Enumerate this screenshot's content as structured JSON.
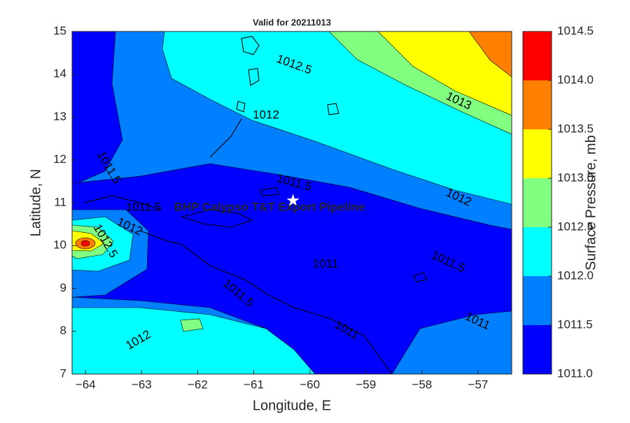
{
  "chart_data": {
    "type": "contourf",
    "title": "Valid for 20211013",
    "x_label": "Longitude, E",
    "y_label": "Latitude, N",
    "colorbar_label": "Surface Pressure, mb",
    "xlim": [
      -64.24,
      -56.4
    ],
    "ylim": [
      7,
      15
    ],
    "xticks": [
      {
        "value": -64,
        "label": "−64"
      },
      {
        "value": -63,
        "label": "−63"
      },
      {
        "value": -62,
        "label": "−62"
      },
      {
        "value": -61,
        "label": "−61"
      },
      {
        "value": -60,
        "label": "−60"
      },
      {
        "value": -59,
        "label": "−59"
      },
      {
        "value": -58,
        "label": "−58"
      },
      {
        "value": -57,
        "label": "−57"
      }
    ],
    "yticks": [
      7,
      8,
      9,
      10,
      11,
      12,
      13,
      14,
      15
    ],
    "levels": [
      1011,
      1011.5,
      1012,
      1012.5,
      1013,
      1013.5,
      1014,
      1014.5
    ],
    "colors": [
      "#0000ff",
      "#0080ff",
      "#00ffff",
      "#80ff80",
      "#ffff00",
      "#ff8000",
      "#ff0000"
    ],
    "clim": [
      1011,
      1014.5
    ],
    "cticks": [
      {
        "value": 1011,
        "label": "1011.0"
      },
      1011.5,
      {
        "value": 1012,
        "label": "1012.0"
      },
      1012.5,
      {
        "value": 1013,
        "label": "1013.0"
      },
      1013.5,
      {
        "value": 1014,
        "label": "1014.0"
      },
      1014.5
    ],
    "contour_labels": [
      1012.5,
      1013,
      1012,
      1011.5,
      1011.5,
      1012,
      1011.5,
      1012,
      1012.5,
      1011,
      1011.5,
      1011.5,
      1011,
      1011,
      1012
    ],
    "marker": {
      "label": "BHP Calypso T&T Export Pipeline",
      "x": -60.3,
      "y": 11.05
    }
  }
}
